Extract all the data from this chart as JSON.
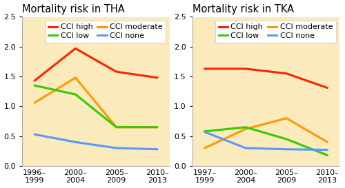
{
  "tha": {
    "title": "Mortality risk in THA",
    "x_labels": [
      "1996–\n1999",
      "2000–\n2004",
      "2005–\n2009",
      "2010–\n2013"
    ],
    "series": {
      "CCI high": [
        1.43,
        1.97,
        1.58,
        1.48
      ],
      "CCI moderate": [
        1.06,
        1.48,
        0.65,
        0.65
      ],
      "CCI low": [
        1.35,
        1.2,
        0.65,
        0.65
      ],
      "CCI none": [
        0.53,
        0.4,
        0.3,
        0.28
      ]
    }
  },
  "tka": {
    "title": "Mortality risk in TKA",
    "x_labels": [
      "1997–\n1999",
      "2000–\n2004",
      "2005–\n2009",
      "2010–\n2013"
    ],
    "series": {
      "CCI high": [
        1.63,
        1.63,
        1.55,
        1.31
      ],
      "CCI moderate": [
        0.3,
        0.62,
        0.8,
        0.4
      ],
      "CCI low": [
        0.58,
        0.65,
        0.45,
        0.18
      ],
      "CCI none": [
        0.57,
        0.3,
        0.28,
        0.27
      ]
    }
  },
  "colors": {
    "CCI high": "#ff2200",
    "CCI moderate": "#ff9900",
    "CCI low": "#33cc00",
    "CCI none": "#5599ff"
  },
  "legend_col1": [
    "CCI high",
    "CCI moderate"
  ],
  "legend_col2": [
    "CCI low",
    "CCI none"
  ],
  "ylim": [
    0,
    2.5
  ],
  "yticks": [
    0,
    0.5,
    1.0,
    1.5,
    2.0,
    2.5
  ],
  "background_color": "#faeabc",
  "linewidth": 2.2,
  "title_fontsize": 10.5,
  "tick_fontsize": 8,
  "legend_fontsize": 8
}
